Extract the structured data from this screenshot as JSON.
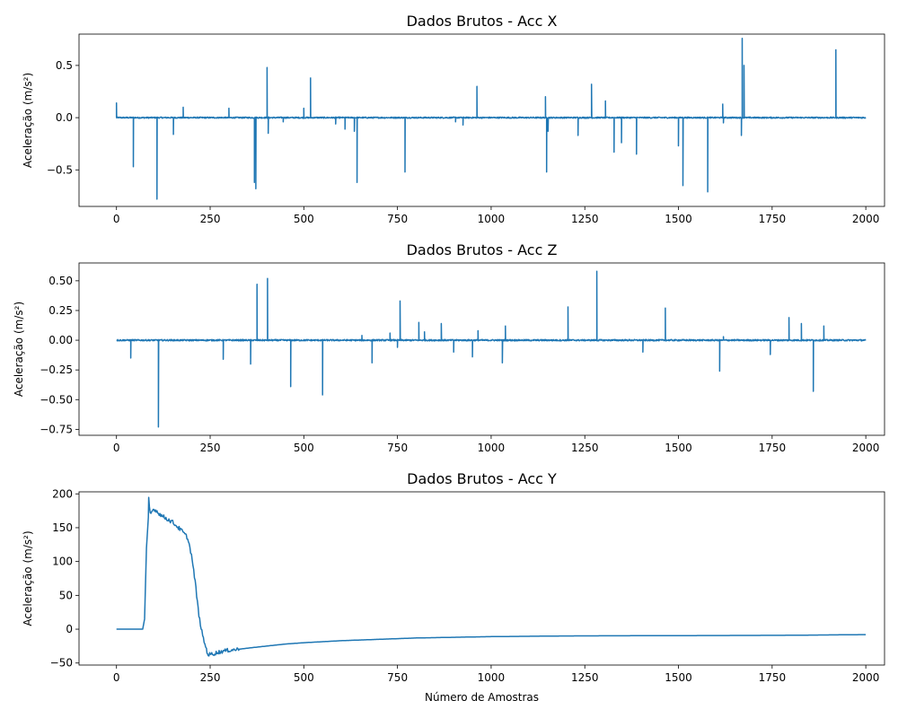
{
  "chart_data": [
    {
      "type": "line",
      "title": "Dados Brutos - Acc X",
      "xlabel": "",
      "ylabel": "Aceleração (m/s²)",
      "xlim": [
        -100,
        2050
      ],
      "ylim": [
        -0.85,
        0.8
      ],
      "xticks": [
        0,
        250,
        500,
        750,
        1000,
        1250,
        1500,
        1750,
        2000
      ],
      "yticks": [
        -0.5,
        0.0,
        0.5
      ],
      "ytick_labels": [
        "−0.5",
        "0.0",
        "0.5"
      ],
      "grid": false,
      "line_color": "#1f77b4",
      "baseline": 0.0,
      "noise": 0.006,
      "spikes": [
        [
          0,
          0.14
        ],
        [
          45,
          -0.47
        ],
        [
          108,
          -0.78
        ],
        [
          152,
          -0.16
        ],
        [
          178,
          0.1
        ],
        [
          300,
          0.09
        ],
        [
          368,
          -0.62
        ],
        [
          372,
          -0.68
        ],
        [
          402,
          0.48
        ],
        [
          405,
          -0.15
        ],
        [
          445,
          -0.04
        ],
        [
          500,
          0.09
        ],
        [
          518,
          0.38
        ],
        [
          585,
          -0.06
        ],
        [
          610,
          -0.11
        ],
        [
          635,
          -0.13
        ],
        [
          642,
          -0.62
        ],
        [
          770,
          -0.52
        ],
        [
          905,
          -0.04
        ],
        [
          925,
          -0.07
        ],
        [
          962,
          0.3
        ],
        [
          1145,
          0.2
        ],
        [
          1148,
          -0.52
        ],
        [
          1152,
          -0.13
        ],
        [
          1232,
          -0.17
        ],
        [
          1268,
          0.32
        ],
        [
          1305,
          0.16
        ],
        [
          1328,
          -0.33
        ],
        [
          1348,
          -0.24
        ],
        [
          1388,
          -0.35
        ],
        [
          1500,
          -0.27
        ],
        [
          1512,
          -0.65
        ],
        [
          1578,
          -0.71
        ],
        [
          1618,
          0.13
        ],
        [
          1620,
          -0.05
        ],
        [
          1668,
          -0.17
        ],
        [
          1670,
          0.76
        ],
        [
          1675,
          0.5
        ],
        [
          1920,
          0.65
        ]
      ]
    },
    {
      "type": "line",
      "title": "Dados Brutos - Acc Z",
      "xlabel": "",
      "ylabel": "Aceleração (m/s²)",
      "xlim": [
        -100,
        2050
      ],
      "ylim": [
        -0.8,
        0.65
      ],
      "xticks": [
        0,
        250,
        500,
        750,
        1000,
        1250,
        1500,
        1750,
        2000
      ],
      "yticks": [
        -0.75,
        -0.5,
        -0.25,
        0.0,
        0.25,
        0.5
      ],
      "ytick_labels": [
        "−0.75",
        "−0.50",
        "−0.25",
        "0.00",
        "0.25",
        "0.50"
      ],
      "grid": false,
      "line_color": "#1f77b4",
      "baseline": 0.0,
      "noise": 0.006,
      "spikes": [
        [
          38,
          -0.15
        ],
        [
          112,
          -0.73
        ],
        [
          285,
          -0.16
        ],
        [
          358,
          -0.2
        ],
        [
          375,
          0.47
        ],
        [
          403,
          0.52
        ],
        [
          465,
          -0.39
        ],
        [
          550,
          -0.46
        ],
        [
          655,
          0.04
        ],
        [
          682,
          -0.19
        ],
        [
          730,
          0.06
        ],
        [
          750,
          -0.06
        ],
        [
          757,
          0.33
        ],
        [
          807,
          0.15
        ],
        [
          822,
          0.07
        ],
        [
          867,
          0.14
        ],
        [
          900,
          -0.1
        ],
        [
          950,
          -0.14
        ],
        [
          965,
          0.08
        ],
        [
          1030,
          -0.19
        ],
        [
          1038,
          0.12
        ],
        [
          1205,
          0.28
        ],
        [
          1282,
          0.58
        ],
        [
          1405,
          -0.1
        ],
        [
          1465,
          0.27
        ],
        [
          1610,
          -0.26
        ],
        [
          1620,
          0.03
        ],
        [
          1745,
          -0.12
        ],
        [
          1795,
          0.19
        ],
        [
          1828,
          0.14
        ],
        [
          1860,
          -0.43
        ],
        [
          1888,
          0.12
        ]
      ]
    },
    {
      "type": "line",
      "title": "Dados Brutos - Acc Y",
      "xlabel": "Número de Amostras",
      "ylabel": "Aceleração (m/s²)",
      "xlim": [
        -100,
        2050
      ],
      "ylim": [
        -53,
        203
      ],
      "xticks": [
        0,
        250,
        500,
        750,
        1000,
        1250,
        1500,
        1750,
        2000
      ],
      "yticks": [
        -50,
        0,
        50,
        100,
        150,
        200
      ],
      "ytick_labels": [
        "−50",
        "0",
        "50",
        "100",
        "150",
        "200"
      ],
      "grid": false,
      "line_color": "#1f77b4",
      "points": [
        [
          0,
          0
        ],
        [
          70,
          0
        ],
        [
          75,
          15
        ],
        [
          80,
          120
        ],
        [
          85,
          165
        ],
        [
          86,
          192
        ],
        [
          90,
          170
        ],
        [
          100,
          178
        ],
        [
          120,
          168
        ],
        [
          150,
          158
        ],
        [
          175,
          145
        ],
        [
          190,
          135
        ],
        [
          200,
          110
        ],
        [
          210,
          70
        ],
        [
          220,
          20
        ],
        [
          230,
          -10
        ],
        [
          240,
          -30
        ],
        [
          245,
          -38
        ],
        [
          260,
          -36
        ],
        [
          280,
          -33
        ],
        [
          300,
          -31
        ],
        [
          320,
          -30
        ],
        [
          350,
          -28
        ],
        [
          400,
          -25
        ],
        [
          450,
          -22
        ],
        [
          500,
          -20
        ],
        [
          600,
          -17
        ],
        [
          700,
          -15
        ],
        [
          800,
          -13
        ],
        [
          900,
          -12
        ],
        [
          1000,
          -11
        ],
        [
          1100,
          -10.5
        ],
        [
          1200,
          -10
        ],
        [
          1300,
          -9.8
        ],
        [
          1500,
          -9.5
        ],
        [
          1700,
          -9.2
        ],
        [
          1800,
          -9
        ],
        [
          1900,
          -8.5
        ],
        [
          2000,
          -8
        ]
      ]
    }
  ]
}
